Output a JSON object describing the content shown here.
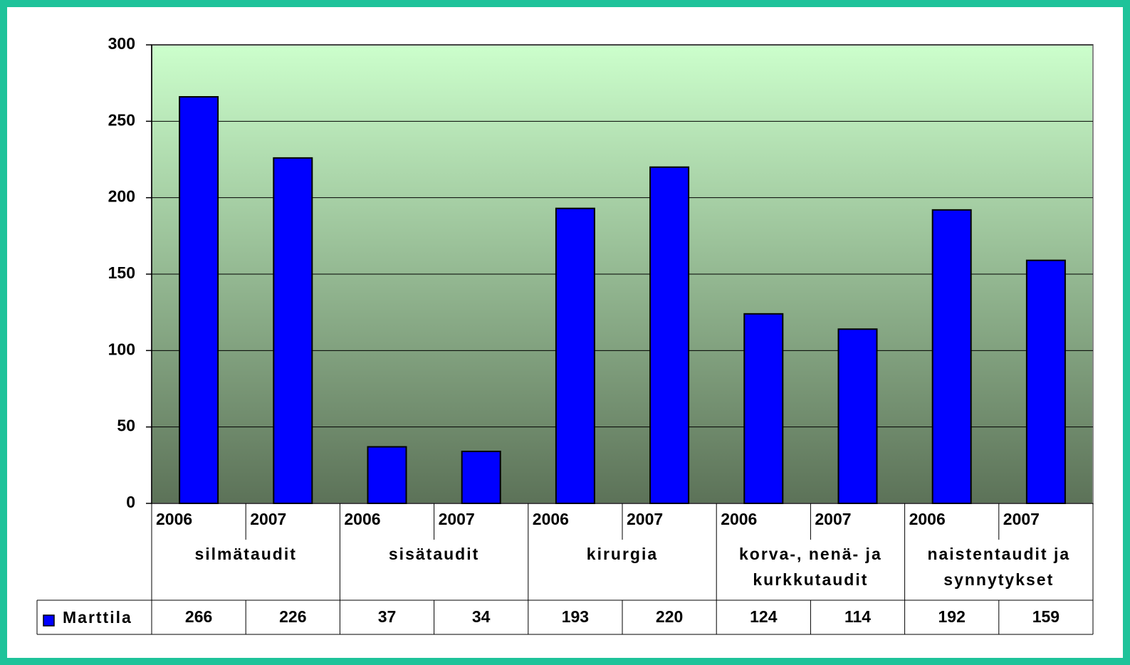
{
  "chart_data": {
    "type": "bar",
    "categories": [
      "2006",
      "2007",
      "2006",
      "2007",
      "2006",
      "2007",
      "2006",
      "2007",
      "2006",
      "2007"
    ],
    "groups": [
      "silmätaudit",
      "sisätaudit",
      "kirurgia",
      "korva-, nenä- ja kurkkutaudit",
      "naistentaudit ja synnytykset"
    ],
    "series": [
      {
        "name": "Marttila",
        "color": "#0000ff",
        "values": [
          266,
          226,
          37,
          34,
          193,
          220,
          124,
          114,
          192,
          159
        ]
      }
    ],
    "ylim": [
      0,
      300
    ],
    "yticks": [
      0,
      50,
      100,
      150,
      200,
      250,
      300
    ],
    "grid": true,
    "data_table": true
  }
}
